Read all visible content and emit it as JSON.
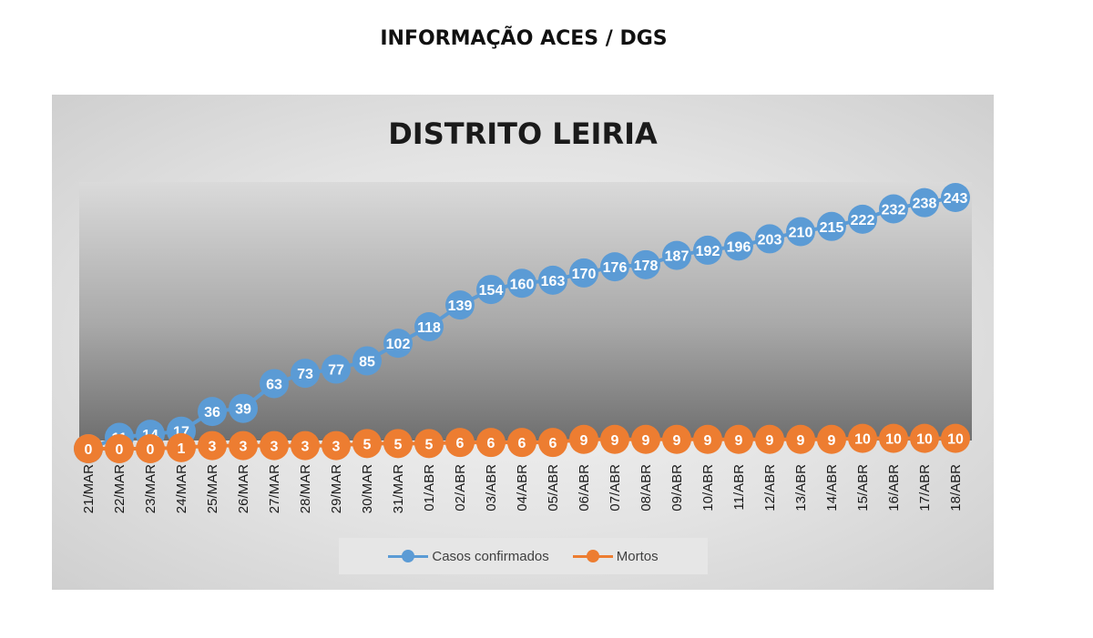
{
  "page": {
    "heading": "INFORMAÇÃO ACES / DGS"
  },
  "chart_data": {
    "type": "line",
    "title": "DISTRITO LEIRIA",
    "xlabel": "",
    "ylabel": "",
    "ylim": [
      0,
      250
    ],
    "grid": false,
    "legend_position": "bottom",
    "categories": [
      "21/MAR",
      "22/MAR",
      "23/MAR",
      "24/MAR",
      "25/MAR",
      "26/MAR",
      "27/MAR",
      "28/MAR",
      "29/MAR",
      "30/MAR",
      "31/MAR",
      "01/ABR",
      "02/ABR",
      "03/ABR",
      "04/ABR",
      "05/ABR",
      "06/ABR",
      "07/ABR",
      "08/ABR",
      "09/ABR",
      "10/ABR",
      "11/ABR",
      "12/ABR",
      "13/ABR",
      "14/ABR",
      "15/ABR",
      "16/ABR",
      "17/ABR",
      "18/ABR"
    ],
    "series": [
      {
        "name": "Casos confirmados",
        "color": "#5b9bd5",
        "values": [
          0,
          11,
          14,
          17,
          36,
          39,
          63,
          73,
          77,
          85,
          102,
          118,
          139,
          154,
          160,
          163,
          170,
          176,
          178,
          187,
          192,
          196,
          203,
          210,
          215,
          222,
          232,
          238,
          243
        ]
      },
      {
        "name": "Mortos",
        "color": "#ed7d31",
        "values": [
          0,
          0,
          0,
          1,
          3,
          3,
          3,
          3,
          3,
          5,
          5,
          5,
          6,
          6,
          6,
          6,
          9,
          9,
          9,
          9,
          9,
          9,
          9,
          9,
          9,
          10,
          10,
          10,
          10
        ]
      }
    ]
  }
}
